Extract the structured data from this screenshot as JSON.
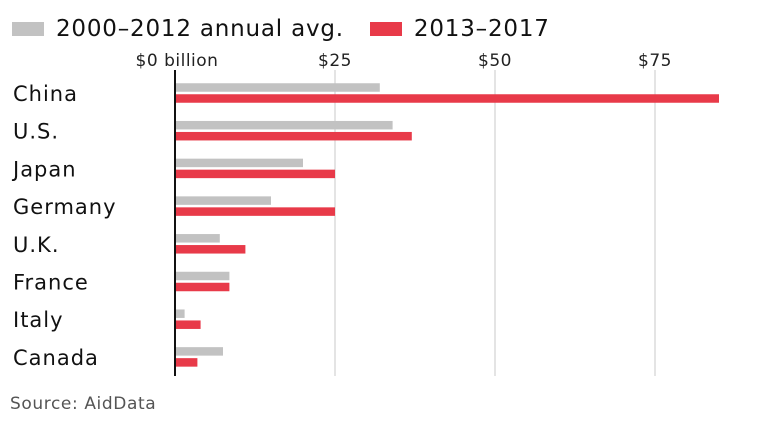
{
  "chart_data": {
    "type": "bar",
    "orientation": "horizontal",
    "categories": [
      "China",
      "U.S.",
      "Japan",
      "Germany",
      "U.K.",
      "France",
      "Italy",
      "Canada"
    ],
    "series": [
      {
        "name": "2000–2012 annual avg.",
        "color": "#c2c2c2",
        "values": [
          32,
          34,
          20,
          15,
          7,
          8.5,
          1.5,
          7.5
        ]
      },
      {
        "name": "2013–2017",
        "color": "#e83a49",
        "values": [
          85,
          37,
          25,
          25,
          11,
          8.5,
          4,
          3.5
        ]
      }
    ],
    "x_ticks": [
      {
        "value": 0,
        "label": "$0 billion"
      },
      {
        "value": 25,
        "label": "$25"
      },
      {
        "value": 50,
        "label": "$50"
      },
      {
        "value": 75,
        "label": "$75"
      }
    ],
    "xlim": [
      0,
      85
    ],
    "grid": true,
    "legend_position": "top-left"
  },
  "source": "Source: AidData"
}
